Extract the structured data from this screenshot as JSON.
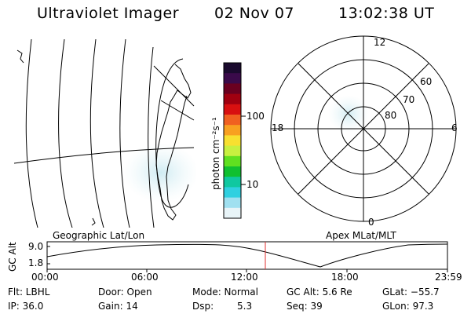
{
  "header": {
    "title": "Ultraviolet Imager",
    "date": "02 Nov 07",
    "time": "13:02:38 UT"
  },
  "map_panels": {
    "left_caption": "Geographic Lat/Lon",
    "right_caption": "Apex MLat/MLT",
    "polar_labels": {
      "top": "12",
      "left": "18",
      "right": "6",
      "bottom": "0",
      "ring_60": "60",
      "ring_70": "70",
      "ring_80": "80"
    }
  },
  "colorbar": {
    "unit_label": "photon cm⁻²s⁻¹",
    "tick_100": "100",
    "tick_10": "10",
    "colors": [
      "#1a0a2e",
      "#3a0a4a",
      "#6a0020",
      "#a00010",
      "#d81010",
      "#f06020",
      "#f8a020",
      "#f8e030",
      "#c8f040",
      "#60e020",
      "#10c030",
      "#10c8a0",
      "#30d0e0",
      "#a0e0f0",
      "#e8f4f8"
    ]
  },
  "altitude_plot": {
    "y_axis_label": "GC Alt",
    "y_ticks": [
      "9.0",
      "1.8"
    ],
    "x_ticks": [
      "00:00",
      "06:00",
      "12:00",
      "18:00",
      "23:59"
    ],
    "current_marker_color": "#e03030"
  },
  "status": {
    "row1": {
      "filter": "Flt: LBHL",
      "door": "Door: Open",
      "mode": "Mode: Normal",
      "gc_alt": "GC Alt: 5.6 Re",
      "glat": "GLat: −55.7"
    },
    "row2": {
      "ip": "IP: 36.0",
      "gain": "Gain: 14",
      "dsp_label": "Dsp:",
      "dsp_value": "5.3",
      "seq": "Seq: 39",
      "glon": "GLon:  97.3"
    }
  }
}
